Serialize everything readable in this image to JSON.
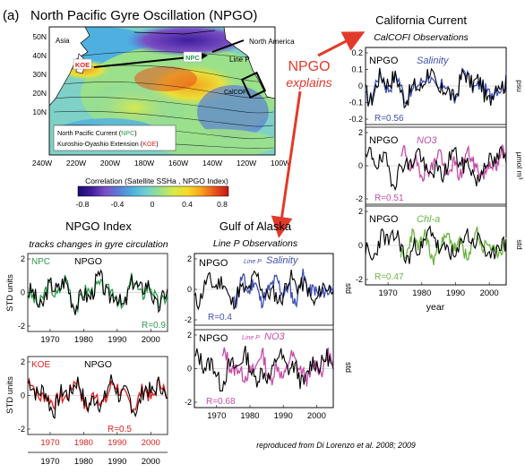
{
  "panel_label": "(a)",
  "map": {
    "title": "North Pacific Gyre Oscillation (NPGO)",
    "lat_labels": [
      "50N",
      "40N",
      "30N",
      "20N",
      "10N"
    ],
    "lon_labels": [
      "240W",
      "220W",
      "200W",
      "180W",
      "160W",
      "140W",
      "120W",
      "100W"
    ],
    "place_labels": {
      "asia": "Asia",
      "north_america": "North America",
      "npc": "NPC",
      "koe": "KOE",
      "line_p": "Line P",
      "calcofi": "CalCOFI"
    },
    "legend_npc_prefix": "North Pacific Current (",
    "legend_npc_abbr": "NPC",
    "legend_koe_prefix": "Kuroshio-Oyashio Extension (",
    "legend_koe_abbr": "KOE",
    "legend_close": ")",
    "colorbar_title": "Correlation (Satellite SSHa , NPGO Index)",
    "colorbar_ticks": [
      "-0.8",
      "-0.4",
      "0",
      "0.4",
      "0.8"
    ],
    "colorbar_colors": [
      "#1a0a6e",
      "#3f1d9e",
      "#7b4fc4",
      "#5b7fd6",
      "#4fb0e0",
      "#6fd0d0",
      "#9be08a",
      "#d6ea4a",
      "#f6d92a",
      "#f7a21e",
      "#e8541c",
      "#c41616"
    ]
  },
  "center_text": {
    "line1": "NPGO",
    "line2": "explains"
  },
  "california": {
    "title": "California Current",
    "subtitle": "CalCOFI Observations",
    "xtick_labels": [
      "1970",
      "1980",
      "1990",
      "2000"
    ],
    "xlabel": "year",
    "panels": [
      {
        "npgo": "NPGO",
        "var": "Salinity",
        "r": "R=0.56",
        "unit": "psu",
        "color": "#3f51b5",
        "yticks": [
          "0.2",
          "0.1",
          "0",
          "-0.1",
          "-0.2"
        ]
      },
      {
        "npgo": "NPGO",
        "var": "NO3",
        "r": "R=0.51",
        "unit": "µmol m³",
        "color": "#c44ea6",
        "yticks": [
          "2",
          "0",
          "-2"
        ]
      },
      {
        "npgo": "NPGO",
        "var": "Chl-a",
        "r": "R=0.47",
        "unit": "std",
        "color": "#6ab540",
        "yticks": [
          "2",
          "0",
          "-2"
        ]
      }
    ]
  },
  "npgo_index": {
    "title": "NPGO Index",
    "subtitle": "tracks changes in gyre circulation",
    "ylabel": "STD units",
    "xtick_labels": [
      "1970",
      "1980",
      "1990",
      "2000"
    ],
    "panels": [
      {
        "tag": "NPC",
        "npgo": "NPGO",
        "r": "R=0.9",
        "color": "#2e9a4e",
        "yticks": [
          "2",
          "0",
          "-2"
        ]
      },
      {
        "tag": "KOE",
        "npgo": "NPGO",
        "r": "R=0.5",
        "color": "#e02020",
        "yticks": [
          "2",
          "0",
          "-2"
        ]
      }
    ]
  },
  "gulf": {
    "title": "Gulf of Alaska",
    "subtitle": "Line P Observations",
    "xtick_labels": [
      "1970",
      "1980",
      "1990",
      "2000"
    ],
    "panels": [
      {
        "npgo": "NPGO",
        "prefix": "Line P",
        "var": "Salinity",
        "r": "R=0.4",
        "unit": "std",
        "color": "#3f51b5",
        "yticks": [
          "2",
          "0",
          "-2"
        ]
      },
      {
        "npgo": "NPGO",
        "prefix": "Line P",
        "var": "NO3",
        "r": "R=0.68",
        "unit": "std",
        "color": "#c44ea6",
        "yticks": [
          "2",
          "0",
          "-2"
        ]
      }
    ]
  },
  "footnote": "reproduced from Di Lorenzo et al. 2008; 2009",
  "chart_data": [
    {
      "type": "heatmap",
      "title": "North Pacific Gyre Oscillation (NPGO)",
      "xlabel": "",
      "ylabel": "",
      "x_range": [
        "240W",
        "100W"
      ],
      "y_range": [
        "10N",
        "50N"
      ],
      "colorbar": {
        "label": "Correlation (Satellite SSHa , NPGO Index)",
        "range": [
          -0.8,
          0.8
        ]
      }
    },
    {
      "type": "line",
      "title": "NPGO Index",
      "ylabel": "STD units",
      "xlim": [
        1965,
        2007
      ],
      "ylim": [
        -2.5,
        2.5
      ],
      "series": [
        {
          "name": "NPGO"
        },
        {
          "name": "NPC"
        }
      ],
      "annotation": "R=0.9"
    },
    {
      "type": "line",
      "ylabel": "STD units",
      "xlim": [
        1965,
        2007
      ],
      "ylim": [
        -2.5,
        2.5
      ],
      "series": [
        {
          "name": "NPGO"
        },
        {
          "name": "KOE"
        }
      ],
      "annotation": "R=0.5"
    },
    {
      "type": "line",
      "title": "Gulf of Alaska",
      "xlim": [
        1965,
        2007
      ],
      "ylim": [
        -2.5,
        2.5
      ],
      "series": [
        {
          "name": "NPGO"
        },
        {
          "name": "Salinity"
        }
      ],
      "annotation": "R=0.4"
    },
    {
      "type": "line",
      "xlim": [
        1965,
        2007
      ],
      "ylim": [
        -2.5,
        2.5
      ],
      "series": [
        {
          "name": "NPGO"
        },
        {
          "name": "NO3"
        }
      ],
      "annotation": "R=0.68"
    },
    {
      "type": "line",
      "title": "California Current",
      "xlim": [
        1965,
        2007
      ],
      "ylim": [
        -0.25,
        0.25
      ],
      "series": [
        {
          "name": "NPGO"
        },
        {
          "name": "Salinity"
        }
      ],
      "annotation": "R=0.56"
    },
    {
      "type": "line",
      "xlim": [
        1965,
        2007
      ],
      "ylim": [
        -3,
        3
      ],
      "series": [
        {
          "name": "NPGO"
        },
        {
          "name": "NO3"
        }
      ],
      "annotation": "R=0.51"
    },
    {
      "type": "line",
      "xlabel": "year",
      "xlim": [
        1965,
        2007
      ],
      "ylim": [
        -3,
        3
      ],
      "series": [
        {
          "name": "NPGO"
        },
        {
          "name": "Chl-a"
        }
      ],
      "annotation": "R=0.47"
    }
  ]
}
